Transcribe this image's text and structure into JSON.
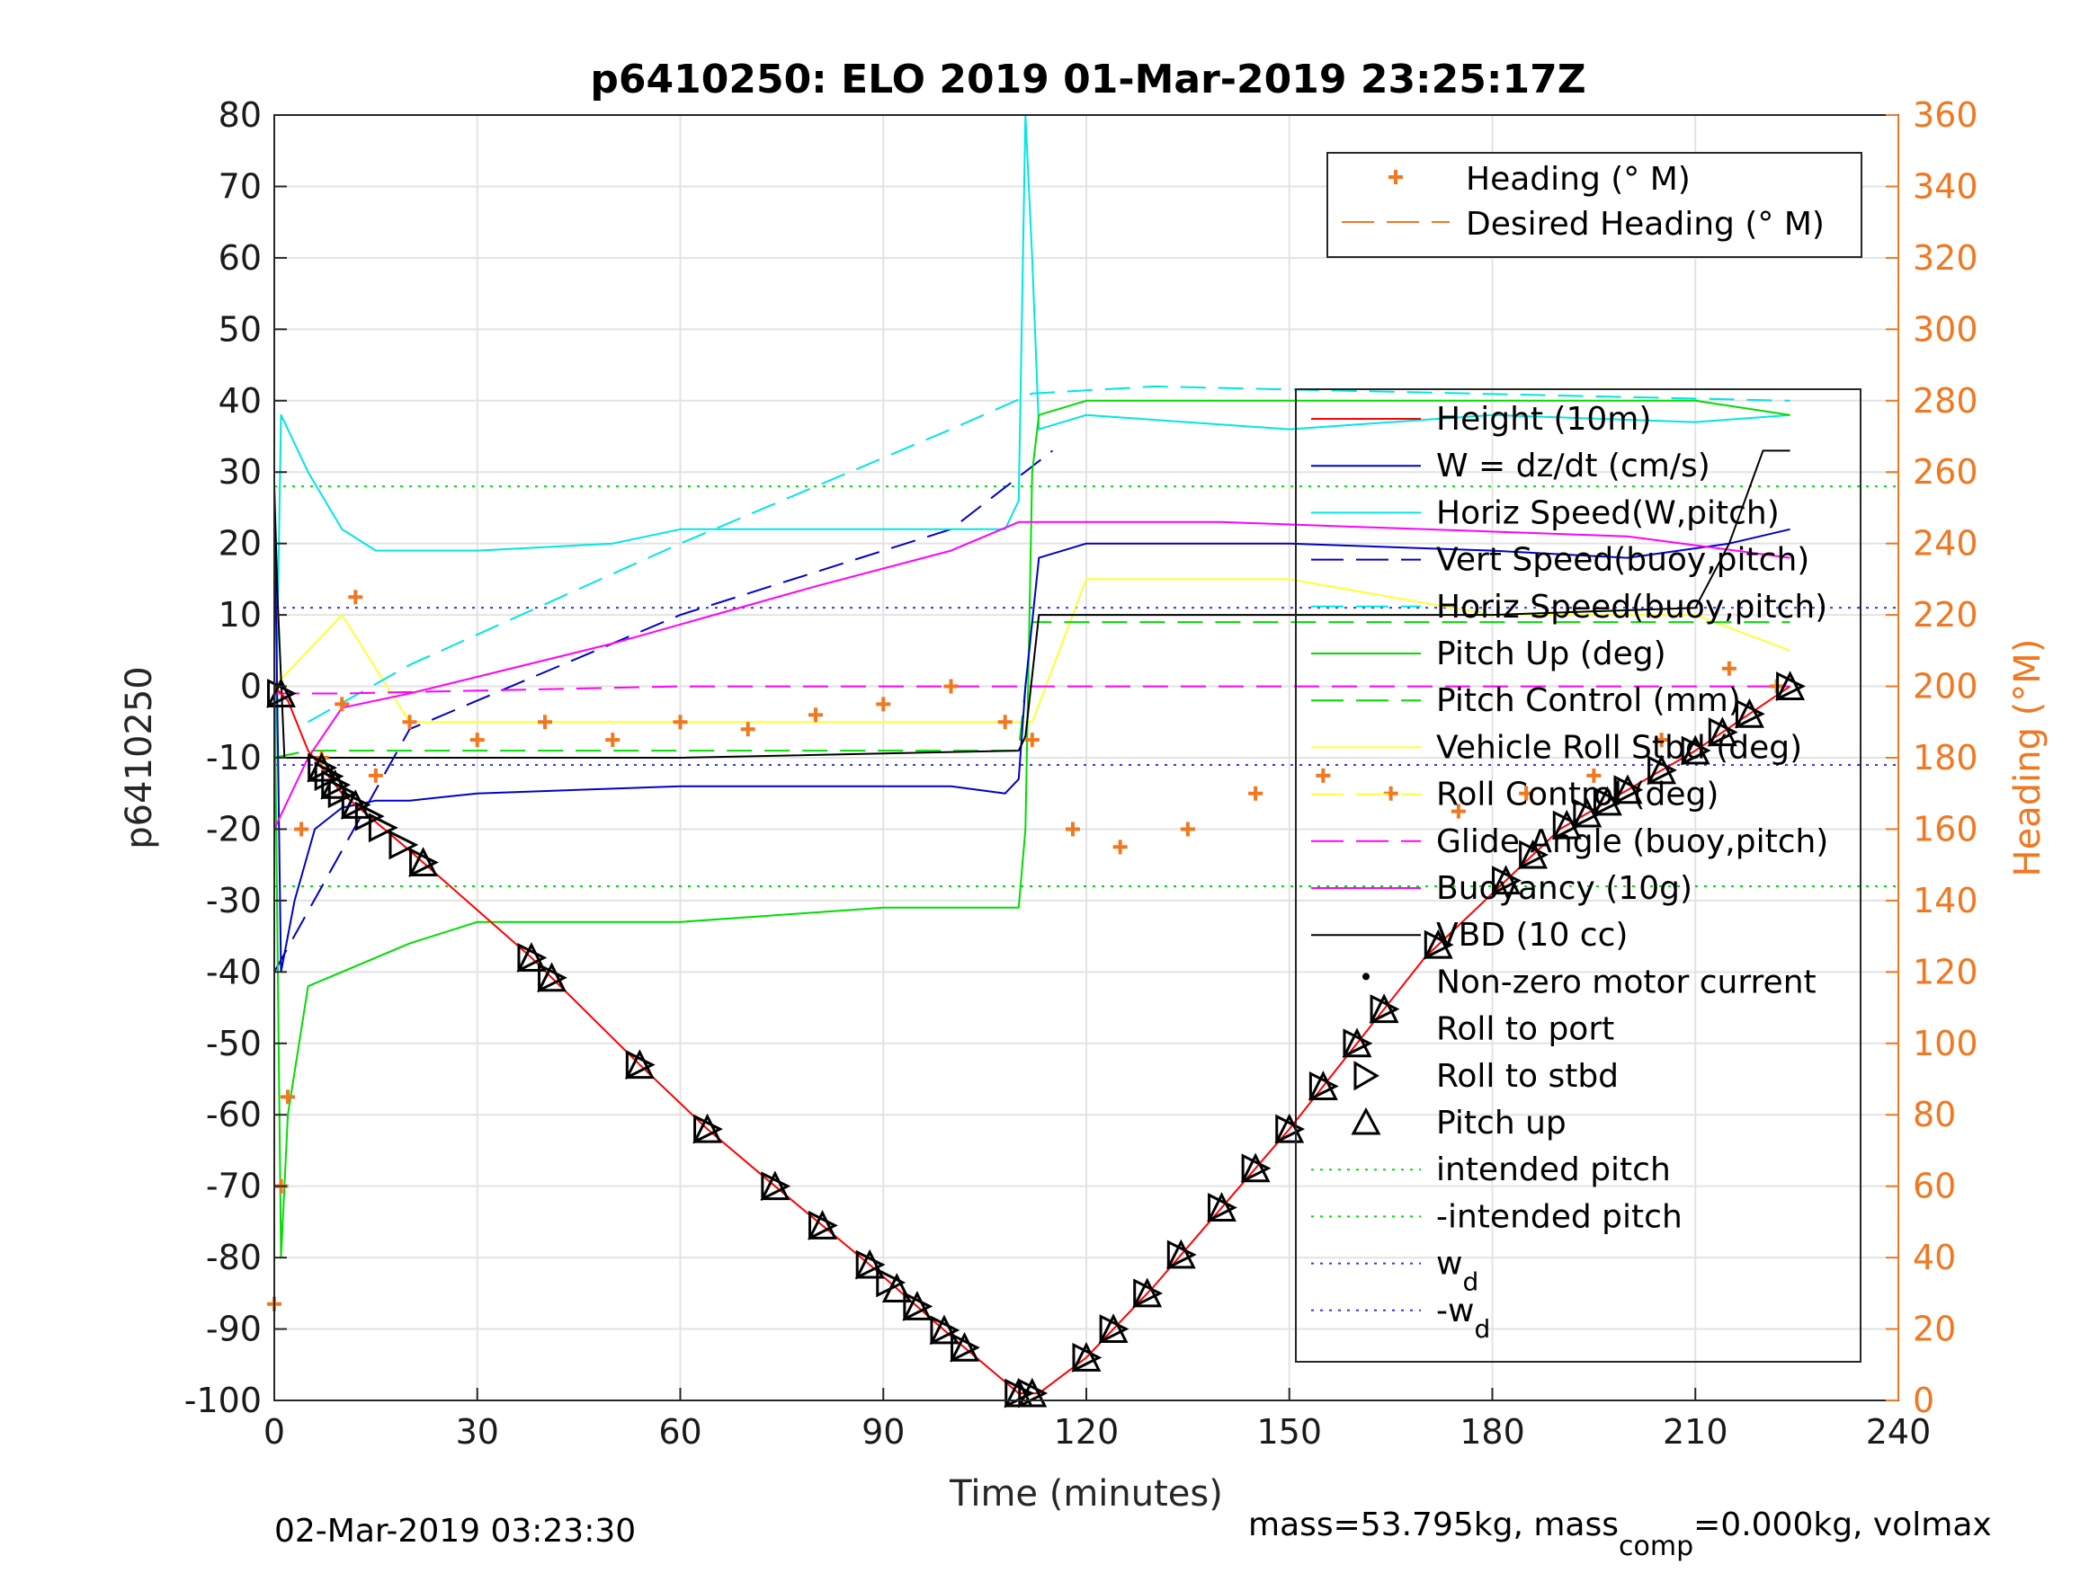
{
  "chart_data": {
    "type": "line",
    "title": "p6410250: ELO 2019 01-Mar-2019 23:25:17Z",
    "xlabel": "Time (minutes)",
    "ylabel": "p6410250",
    "ylabel_right": "Heading (°M)",
    "xlim": [
      0,
      240
    ],
    "ylim": [
      -100,
      80
    ],
    "ylim_right": [
      0,
      360
    ],
    "xticks": [
      "0",
      "30",
      "60",
      "90",
      "120",
      "150",
      "180",
      "210",
      "240"
    ],
    "yticks": [
      "80",
      "70",
      "60",
      "50",
      "40",
      "30",
      "20",
      "10",
      "0",
      "-10",
      "-20",
      "-30",
      "-40",
      "-50",
      "-60",
      "-70",
      "-80",
      "-90",
      "-100"
    ],
    "yticks_right": [
      "360",
      "340",
      "320",
      "300",
      "280",
      "260",
      "240",
      "220",
      "200",
      "180",
      "160",
      "140",
      "120",
      "100",
      "80",
      "60",
      "40",
      "20",
      "0"
    ],
    "grid": true,
    "colors": {
      "heading": "#f07820",
      "height": "#ff0000",
      "w": "#0000c8",
      "horiz_speed": "#00e5e5",
      "pitch": "#00dd00",
      "roll": "#ffff33",
      "glide": "#ff00ff",
      "vbd": "#000000",
      "w_d": "#3333ff"
    },
    "legend_top": [
      {
        "label": "Heading (° M)",
        "marker": "plus",
        "color": "#f07820"
      },
      {
        "label": "Desired Heading (° M)",
        "marker": "dash",
        "color": "#f07820"
      }
    ],
    "legend_main": [
      {
        "label": "Height (10m)",
        "style": "line",
        "color": "#ff0000"
      },
      {
        "label": "W = dz/dt (cm/s)",
        "style": "line",
        "color": "#0000c8"
      },
      {
        "label": "Horiz Speed(W,pitch)",
        "style": "line",
        "color": "#00e5e5"
      },
      {
        "label": "Vert Speed(buoy,pitch)",
        "style": "dash",
        "color": "#0000c8"
      },
      {
        "label": "Horiz Speed(buoy,pitch)",
        "style": "dash",
        "color": "#00e5e5"
      },
      {
        "label": "Pitch Up (deg)",
        "style": "line",
        "color": "#00dd00"
      },
      {
        "label": "Pitch Control (mm)",
        "style": "dash",
        "color": "#00dd00"
      },
      {
        "label": "Vehicle Roll Stbd (deg)",
        "style": "line",
        "color": "#ffff33"
      },
      {
        "label": "Roll Control (deg)",
        "style": "dash",
        "color": "#ffff33"
      },
      {
        "label": "Glide Angle (buoy,pitch)",
        "style": "dash",
        "color": "#ff00ff"
      },
      {
        "label": "Buoyancy (10g)",
        "style": "line",
        "color": "#ff00ff"
      },
      {
        "label": "VBD (10 cc)",
        "style": "line",
        "color": "#000000"
      },
      {
        "label": "Non-zero motor current",
        "style": "dot",
        "color": "#000000"
      },
      {
        "label": "Roll to port",
        "style": "none",
        "color": "#000000"
      },
      {
        "label": "Roll to stbd",
        "style": "tri-right",
        "color": "#000000"
      },
      {
        "label": "Pitch up",
        "style": "tri-up",
        "color": "#000000"
      },
      {
        "label": "intended pitch",
        "style": "dotted",
        "color": "#00dd00"
      },
      {
        "label": "-intended pitch",
        "style": "dotted",
        "color": "#00dd00"
      },
      {
        "label": "w",
        "sub": "d",
        "style": "dotted",
        "color": "#3333ff"
      },
      {
        "label": "-w",
        "sub": "d",
        "style": "dotted",
        "color": "#3333ff"
      }
    ],
    "reference_lines": {
      "intended_pitch": 28,
      "neg_intended_pitch": -28,
      "w_d": 11,
      "neg_w_d": -11
    },
    "series": {
      "height": {
        "x": [
          0,
          2,
          5,
          10,
          20,
          38,
          54,
          64,
          74,
          88,
          100,
          110,
          113,
          120,
          130,
          150,
          170,
          190,
          210,
          224
        ],
        "y": [
          0,
          -2,
          -9,
          -15,
          -23,
          -38,
          -53,
          -62,
          -70,
          -81,
          -91,
          -99,
          -99,
          -94,
          -84,
          -62,
          -38,
          -20,
          -9,
          0
        ]
      },
      "w": {
        "x": [
          0,
          1,
          3,
          6,
          10,
          15,
          20,
          30,
          60,
          90,
          100,
          108,
          110,
          111,
          113,
          120,
          150,
          180,
          200,
          215,
          224
        ],
        "y": [
          28,
          -40,
          -30,
          -20,
          -17,
          -16,
          -16,
          -15,
          -14,
          -14,
          -14,
          -15,
          -13,
          0,
          18,
          20,
          20,
          19,
          18,
          20,
          22
        ]
      },
      "horiz_speed": {
        "x": [
          0,
          1,
          2,
          5,
          10,
          15,
          20,
          30,
          50,
          60,
          80,
          100,
          108,
          110,
          111,
          112,
          113,
          120,
          150,
          180,
          210,
          224
        ],
        "y": [
          -20,
          38,
          36,
          30,
          22,
          19,
          19,
          19,
          20,
          22,
          22,
          22,
          22,
          26,
          80,
          60,
          36,
          38,
          36,
          38,
          37,
          38
        ]
      },
      "vert_speed_buoy": {
        "x": [
          0,
          20,
          60,
          100,
          115
        ],
        "y": [
          -40,
          -6,
          10,
          22,
          33
        ]
      },
      "horiz_speed_buoy": {
        "x": [
          5,
          20,
          60,
          100,
          112,
          130,
          224
        ],
        "y": [
          -5,
          3,
          20,
          36,
          41,
          42,
          40
        ]
      },
      "pitch": {
        "x": [
          0,
          1,
          2,
          5,
          10,
          20,
          30,
          60,
          90,
          110,
          111,
          112,
          113,
          120,
          150,
          180,
          210,
          224
        ],
        "y": [
          5,
          -80,
          -60,
          -42,
          -40,
          -36,
          -33,
          -33,
          -31,
          -31,
          -20,
          30,
          38,
          40,
          40,
          40,
          40,
          38
        ]
      },
      "pitch_control": {
        "x": [
          0,
          5,
          20,
          60,
          110,
          112,
          224
        ],
        "y": [
          -10,
          -9,
          -9,
          -9,
          -9,
          9,
          9
        ]
      },
      "roll": {
        "x": [
          0,
          10,
          20,
          40,
          60,
          80,
          100,
          112,
          120,
          150,
          180,
          210,
          224
        ],
        "y": [
          0,
          10,
          -5,
          -5,
          -5,
          -5,
          -5,
          -5,
          15,
          15,
          10,
          10,
          5
        ]
      },
      "glide": {
        "x": [
          0,
          10,
          60,
          110,
          120,
          170,
          224
        ],
        "y": [
          -1,
          -1,
          0,
          0,
          0,
          0,
          0
        ]
      },
      "buoyancy": {
        "x": [
          0,
          5,
          10,
          20,
          50,
          80,
          100,
          110,
          115,
          140,
          170,
          200,
          224
        ],
        "y": [
          -20,
          -10,
          -3,
          -1,
          6,
          14,
          19,
          23,
          23,
          23,
          22,
          21,
          18
        ]
      },
      "vbd": {
        "x": [
          0,
          0.5,
          1.5,
          5,
          10,
          60,
          110,
          111,
          113,
          120,
          180,
          210,
          215,
          220,
          224
        ],
        "y": [
          28,
          12,
          -10,
          -10,
          -10,
          -10,
          -9,
          -7,
          10,
          10,
          10,
          11,
          20,
          33,
          33
        ]
      },
      "heading_deg": {
        "x": [
          0,
          1,
          2,
          4,
          7,
          10,
          12,
          15,
          20,
          30,
          40,
          50,
          60,
          70,
          80,
          90,
          100,
          108,
          112,
          118,
          125,
          135,
          145,
          155,
          165,
          175,
          185,
          195,
          205,
          215,
          222
        ],
        "y": [
          27,
          60,
          85,
          160,
          180,
          195,
          225,
          175,
          190,
          185,
          190,
          185,
          190,
          188,
          192,
          195,
          200,
          190,
          185,
          160,
          155,
          160,
          170,
          175,
          170,
          165,
          170,
          175,
          185,
          205,
          200
        ]
      }
    },
    "markers": {
      "roll_to_stbd_x": [
        1,
        7,
        8,
        9,
        10,
        12,
        14,
        16,
        19,
        22,
        38,
        41,
        54,
        64,
        74,
        81,
        88,
        91,
        95,
        99,
        102,
        110,
        112,
        120,
        124,
        129,
        134,
        140,
        145,
        150,
        155,
        160,
        164,
        172,
        182,
        186,
        191,
        194,
        197,
        200,
        205,
        210,
        214,
        218,
        224
      ],
      "pitch_up_x": [
        1,
        7,
        9,
        12,
        22,
        38,
        41,
        54,
        64,
        74,
        81,
        88,
        92,
        95,
        99,
        102,
        110,
        112,
        120,
        124,
        129,
        134,
        140,
        145,
        150,
        155,
        160,
        164,
        172,
        182,
        186,
        191,
        194,
        197,
        200,
        205,
        210,
        214,
        218,
        224
      ]
    },
    "footer_left": "02-Mar-2019 03:23:30",
    "footer_right_prefix": "mass=53.795kg, mass",
    "footer_right_sub": "comp",
    "footer_right_suffix": "=0.000kg, volmax"
  }
}
